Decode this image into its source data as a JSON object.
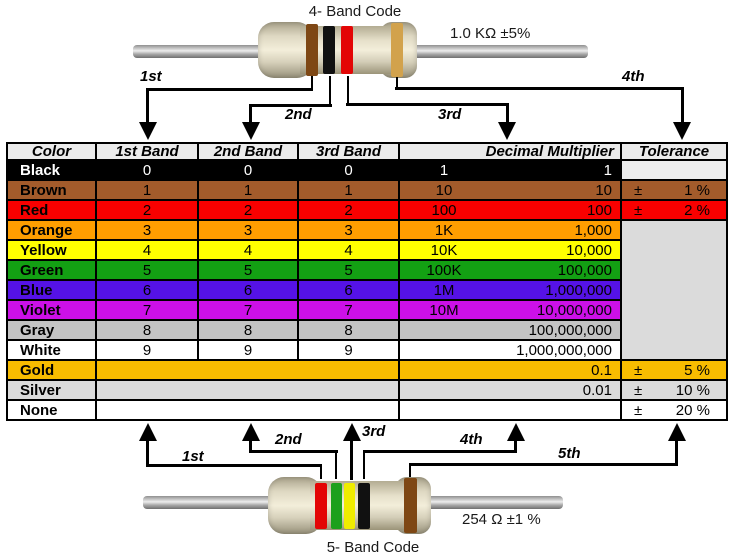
{
  "top": {
    "title": "4- Band Code",
    "value_label": "1.0 KΩ  ±5%",
    "arrows": [
      "1st",
      "2nd",
      "3rd",
      "4th"
    ],
    "bands": [
      {
        "name": "brown",
        "color": "#7E4714"
      },
      {
        "name": "black",
        "color": "#111111"
      },
      {
        "name": "red",
        "color": "#E30505"
      },
      {
        "name": "gold",
        "color": "#D2A24C"
      }
    ]
  },
  "bottom": {
    "title": "5- Band Code",
    "value_label": "254 Ω  ±1 %",
    "arrows": [
      "1st",
      "2nd",
      "3rd",
      "4th",
      "5th"
    ],
    "bands": [
      {
        "name": "red",
        "color": "#E30505"
      },
      {
        "name": "green",
        "color": "#1CA01C"
      },
      {
        "name": "yellow",
        "color": "#F0EC00"
      },
      {
        "name": "black",
        "color": "#111111"
      },
      {
        "name": "brown",
        "color": "#7E4714"
      }
    ]
  },
  "table": {
    "headers": [
      "Color",
      "1st Band",
      "2nd Band",
      "3rd Band",
      "Decimal Multiplier",
      "Tolerance"
    ],
    "header_bg": "#EBEBEB",
    "black_tolerance_bg": "#EDEDED",
    "merged_tolerance_bg": "#DBDBDB",
    "rows": [
      {
        "name": "Black",
        "bg": "#000000",
        "fg": "#FFFFFF",
        "bands": [
          "0",
          "0",
          "0"
        ],
        "mult_short": "1",
        "mult_full": "1",
        "tol_type": "empty"
      },
      {
        "name": "Brown",
        "bg": "#A35B2B",
        "fg": "#000000",
        "bands": [
          "1",
          "1",
          "1"
        ],
        "mult_short": "10",
        "mult_full": "10",
        "tol_type": "value",
        "tol_sign": "±",
        "tol_value": "1 %"
      },
      {
        "name": "Red",
        "bg": "#F90000",
        "fg": "#000000",
        "bands": [
          "2",
          "2",
          "2"
        ],
        "mult_short": "100",
        "mult_full": "100",
        "tol_type": "value",
        "tol_sign": "±",
        "tol_value": "2 %"
      },
      {
        "name": "Orange",
        "bg": "#FF9E00",
        "fg": "#000000",
        "bands": [
          "3",
          "3",
          "3"
        ],
        "mult_short": "1K",
        "mult_full": "1,000",
        "tol_type": "merged-start"
      },
      {
        "name": "Yellow",
        "bg": "#FFFF00",
        "fg": "#000000",
        "bands": [
          "4",
          "4",
          "4"
        ],
        "mult_short": "10K",
        "mult_full": "10,000",
        "tol_type": "none"
      },
      {
        "name": "Green",
        "bg": "#13A013",
        "fg": "#000000",
        "bands": [
          "5",
          "5",
          "5"
        ],
        "mult_short": "100K",
        "mult_full": "100,000",
        "tol_type": "none"
      },
      {
        "name": "Blue",
        "bg": "#5512E6",
        "fg": "#000000",
        "bands": [
          "6",
          "6",
          "6"
        ],
        "mult_short": "1M",
        "mult_full": "1,000,000",
        "tol_type": "none"
      },
      {
        "name": "Violet",
        "bg": "#CC10E8",
        "fg": "#000000",
        "bands": [
          "7",
          "7",
          "7"
        ],
        "mult_short": "10M",
        "mult_full": "10,000,000",
        "tol_type": "none"
      },
      {
        "name": "Gray",
        "bg": "#C4C4C4",
        "fg": "#000000",
        "bands": [
          "8",
          "8",
          "8"
        ],
        "mult_short": "",
        "mult_full": "100,000,000",
        "tol_type": "none"
      },
      {
        "name": "White",
        "bg": "#FFFFFF",
        "fg": "#000000",
        "bands": [
          "9",
          "9",
          "9"
        ],
        "mult_short": "",
        "mult_full": "1,000,000,000",
        "tol_type": "none"
      },
      {
        "name": "Gold",
        "bg": "#F8BC00",
        "fg": "#000000",
        "bands": null,
        "mult_short": "",
        "mult_full": "0.1",
        "tol_type": "value",
        "tol_sign": "±",
        "tol_value": "5 %"
      },
      {
        "name": "Silver",
        "bg": "#DBDBDB",
        "fg": "#000000",
        "bands": null,
        "mult_short": "",
        "mult_full": "0.01",
        "tol_type": "value",
        "tol_sign": "±",
        "tol_value": "10 %"
      },
      {
        "name": "None",
        "bg": "#FFFFFF",
        "fg": "#000000",
        "bands": null,
        "mult_short": "",
        "mult_full": "",
        "tol_type": "value",
        "tol_sign": "±",
        "tol_value": "20 %"
      }
    ]
  }
}
